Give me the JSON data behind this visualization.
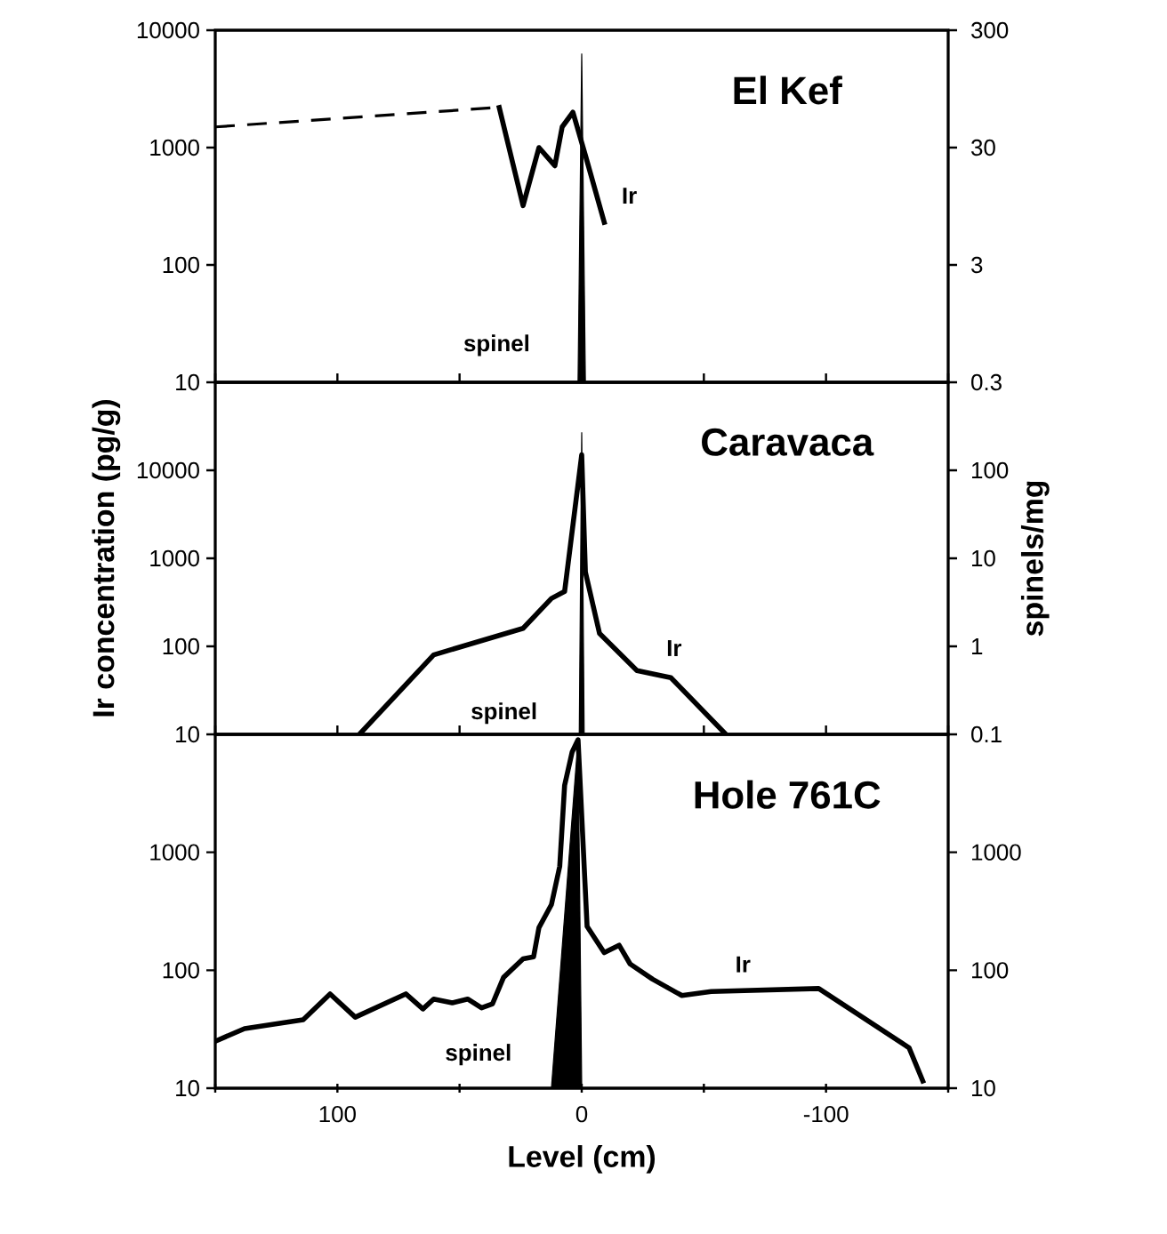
{
  "chart_data": [
    {
      "type": "line",
      "title": "El Kef",
      "log": true,
      "tick_labels": "y",
      "xlim": [
        150,
        -150
      ],
      "xticks": [
        {
          "value": 150,
          "label": null
        },
        100,
        {
          "value": 50,
          "label": null
        },
        0,
        {
          "value": -50,
          "label": null
        },
        -100,
        {
          "value": -150,
          "label": null
        }
      ],
      "ylim": [
        10,
        10000
      ],
      "yticks": [
        10,
        100,
        1000,
        10000
      ],
      "series": [
        {
          "color": "#000000",
          "line_style": "dashed",
          "x": [
            150,
            34
          ],
          "values": [
            1500,
            2200
          ]
        },
        {
          "color": "#000000",
          "x": [
            34,
            24,
            17.5,
            11,
            8,
            3.6,
            -1.5,
            -9.5
          ],
          "values": [
            2300,
            320,
            1000,
            700,
            1500,
            2000,
            860,
            220
          ]
        }
      ],
      "annotations": [
        "Ir"
      ]
    },
    {
      "type": "area",
      "log": true,
      "tick_labels": "y",
      "xlim": [
        150,
        -150
      ],
      "ylim": [
        0.3,
        300
      ],
      "yticks": [
        0.3,
        3,
        30,
        300
      ],
      "series": [
        {
          "color": "#000000",
          "x": [
            1.5,
            0,
            -1.5
          ],
          "values": [
            0.3,
            190,
            0.3
          ]
        }
      ],
      "annotations": [
        "spinel"
      ]
    },
    {
      "type": "line",
      "title": "Caravaca",
      "log": true,
      "tick_labels": "y",
      "ylabel": "Ir concentration (pg/g)",
      "xlim": [
        150,
        -150
      ],
      "xticks": [
        {
          "value": 150,
          "label": null
        },
        100,
        {
          "value": 50,
          "label": null
        },
        0,
        {
          "value": -50,
          "label": null
        },
        -100,
        {
          "value": -150,
          "label": null
        }
      ],
      "ylim": [
        10,
        100000
      ],
      "yticks": [
        10,
        100,
        1000,
        10000
      ],
      "series": [
        {
          "color": "#000000",
          "x": [
            91,
            60.6,
            24,
            12.4,
            7,
            0,
            -1.5,
            -7.3,
            -22.6,
            -36.5,
            -59
          ],
          "values": [
            10,
            80,
            160,
            350,
            420,
            15000,
            700,
            140,
            53,
            44,
            10
          ]
        }
      ],
      "annotations": [
        "Ir"
      ]
    },
    {
      "type": "area",
      "log": true,
      "tick_labels": "y",
      "ylabel": "spinels/mg",
      "xlim": [
        150,
        -150
      ],
      "ylim": [
        0.1,
        1000
      ],
      "yticks": [
        0.1,
        1,
        10,
        100
      ],
      "series": [
        {
          "color": "#000000",
          "x": [
            1,
            0,
            -1
          ],
          "values": [
            0.1,
            270,
            0.1
          ]
        }
      ],
      "annotations": [
        "spinel"
      ]
    },
    {
      "type": "line",
      "title": "Hole 761C",
      "log": true,
      "xlabel": "Level (cm)",
      "xlim": [
        150,
        -150
      ],
      "xticks": [
        {
          "value": 150,
          "label": null
        },
        100,
        {
          "value": 50,
          "label": null
        },
        0,
        {
          "value": -50,
          "label": null
        },
        -100,
        {
          "value": -150,
          "label": null
        }
      ],
      "ylim": [
        10,
        10000
      ],
      "yticks": [
        10,
        100,
        1000
      ],
      "series": [
        {
          "color": "#000000",
          "x": [
            150,
            138,
            114,
            103,
            92.7,
            72,
            65,
            60.6,
            53,
            46.7,
            41,
            36.5,
            32,
            24,
            19.7,
            17.5,
            12.4,
            9,
            7,
            3.9,
            1.5,
            -2.2,
            -9.2,
            -15.3,
            -19.8,
            -29,
            -41,
            -53,
            -97,
            -134,
            -140
          ],
          "values": [
            25,
            32,
            38,
            63,
            40,
            63,
            47,
            57,
            53,
            57,
            48,
            52,
            87,
            125,
            130,
            230,
            360,
            760,
            3700,
            7100,
            9000,
            235,
            141,
            163,
            113,
            84,
            61,
            66,
            70,
            22,
            11
          ]
        }
      ],
      "annotations": [
        "Ir"
      ]
    },
    {
      "type": "area",
      "log": true,
      "tick_labels": "y",
      "xlim": [
        150,
        -150
      ],
      "ylim": [
        10,
        10000
      ],
      "yticks": [
        10,
        100,
        1000
      ],
      "series": [
        {
          "color": "#000000",
          "x": [
            12.4,
            1.5,
            0
          ],
          "values": [
            10,
            9000,
            10
          ]
        }
      ],
      "annotations": [
        "spinel"
      ]
    }
  ]
}
